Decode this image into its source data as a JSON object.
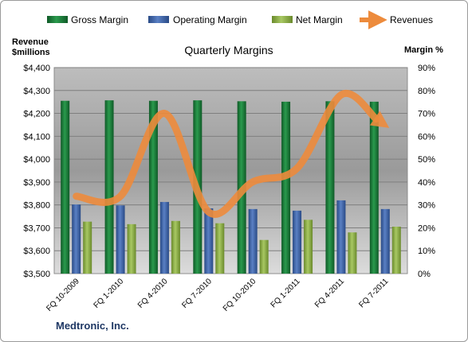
{
  "chart_data": {
    "type": "bar",
    "title": "Quarterly Margins",
    "footer": "Medtronic, Inc.",
    "y_left_label_line1": "Revenue",
    "y_left_label_line2": "$millions",
    "y_right_label": "Margin %",
    "categories": [
      "FQ 10-2009",
      "FQ 1-2010",
      "FQ 4-2010",
      "FQ 7-2010",
      "FQ 10-2010",
      "FQ 1-2011",
      "FQ 4-2011",
      "FQ 7-2011"
    ],
    "y_left_ticks": [
      "$3,500",
      "$3,600",
      "$3,700",
      "$3,800",
      "$3,900",
      "$4,000",
      "$4,100",
      "$4,200",
      "$4,300",
      "$4,400"
    ],
    "y_right_ticks": [
      "0%",
      "10%",
      "20%",
      "30%",
      "40%",
      "50%",
      "60%",
      "70%",
      "80%",
      "90%"
    ],
    "ylim_left": [
      3500,
      4400
    ],
    "ylim_right": [
      0,
      90
    ],
    "series": [
      {
        "name": "Gross Margin",
        "axis": "right",
        "kind": "bar",
        "color": "#1e7b3a",
        "values": [
          75.5,
          75.7,
          75.5,
          75.7,
          75.3,
          75.1,
          75.3,
          75.1
        ]
      },
      {
        "name": "Operating Margin",
        "axis": "right",
        "kind": "bar",
        "color": "#3f64a8",
        "values": [
          30.2,
          29.8,
          31.3,
          28.5,
          28.2,
          27.5,
          32.0,
          28.2
        ]
      },
      {
        "name": "Net Margin",
        "axis": "right",
        "kind": "bar",
        "color": "#8fb04a",
        "values": [
          22.7,
          21.6,
          23.0,
          22.0,
          14.7,
          23.5,
          18.0,
          20.5
        ]
      },
      {
        "name": "Revenues",
        "axis": "left",
        "kind": "line",
        "color": "#ed8b3c",
        "values": [
          3838,
          3838,
          4200,
          3769,
          3901,
          3960,
          4281,
          4148
        ]
      }
    ],
    "grid": true,
    "legend_position": "top"
  }
}
